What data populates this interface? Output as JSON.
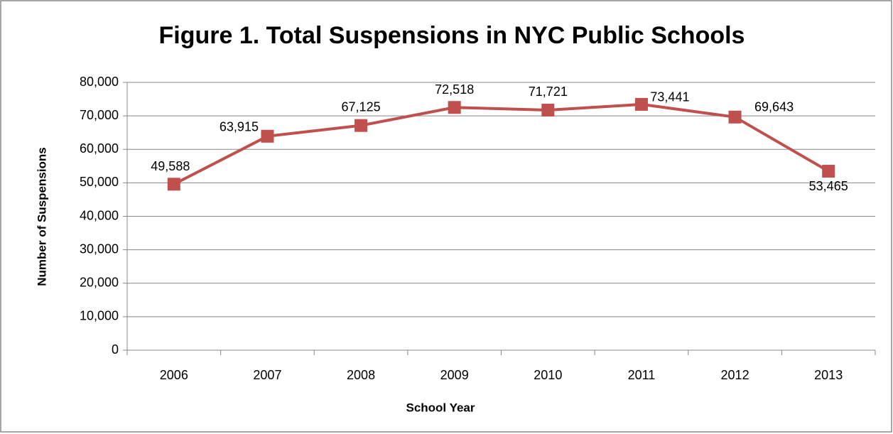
{
  "chart_data": {
    "type": "line",
    "title": "Figure 1. Total Suspensions in NYC Public Schools",
    "x_label": "School Year",
    "y_label": "Number of Suspensions",
    "categories": [
      "2006",
      "2007",
      "2008",
      "2009",
      "2010",
      "2011",
      "2012",
      "2013"
    ],
    "series": [
      {
        "name": "Total Suspensions",
        "color": "#c0504d",
        "values": [
          49588,
          63915,
          67125,
          72518,
          71721,
          73441,
          69643,
          53465
        ],
        "value_labels": [
          "49,588",
          "63,915",
          "67,125",
          "72,518",
          "71,721",
          "73,441",
          "69,643",
          "53,465"
        ]
      }
    ],
    "ylim": [
      0,
      80000
    ],
    "yticks": [
      0,
      {
        "value": 10000,
        "label": "10,000"
      },
      {
        "value": 20000,
        "label": "20,000"
      },
      {
        "value": 30000,
        "label": "30,000"
      },
      {
        "value": 40000,
        "label": "40,000"
      },
      {
        "value": 50000,
        "label": "50,000"
      },
      {
        "value": 60000,
        "label": "60,000"
      },
      {
        "value": 70000,
        "label": "70,000"
      },
      {
        "value": 80000,
        "label": "80,000"
      }
    ],
    "grid": true
  }
}
